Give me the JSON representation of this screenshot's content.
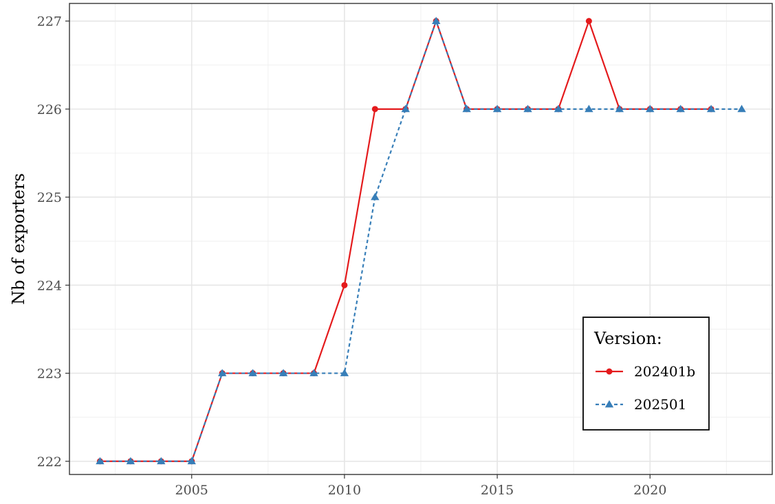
{
  "chart_data": {
    "type": "line",
    "title": "",
    "xlabel": "",
    "ylabel": "Nb of exporters",
    "xlim": [
      2001.0,
      2024.0
    ],
    "ylim": [
      221.85,
      227.2
    ],
    "xticks": [
      2005,
      2010,
      2015,
      2020
    ],
    "yticks": [
      222,
      223,
      224,
      225,
      226,
      227
    ],
    "grid": true,
    "legend": {
      "title": "Version:",
      "position": "bottom-right, inside plot"
    },
    "series": [
      {
        "name": "202401b",
        "color": "#e41a1c",
        "line": "solid",
        "marker": "circle",
        "x": [
          2002,
          2003,
          2004,
          2005,
          2006,
          2007,
          2008,
          2009,
          2010,
          2011,
          2012,
          2013,
          2014,
          2015,
          2016,
          2017,
          2018,
          2019,
          2020,
          2021,
          2022
        ],
        "values": [
          222,
          222,
          222,
          222,
          223,
          223,
          223,
          223,
          224,
          226,
          226,
          227,
          226,
          226,
          226,
          226,
          227,
          226,
          226,
          226,
          226
        ]
      },
      {
        "name": "202501",
        "color": "#377eb8",
        "line": "dashed",
        "marker": "triangle",
        "x": [
          2002,
          2003,
          2004,
          2005,
          2006,
          2007,
          2008,
          2009,
          2010,
          2011,
          2012,
          2013,
          2014,
          2015,
          2016,
          2017,
          2018,
          2019,
          2020,
          2021,
          2022,
          2023
        ],
        "values": [
          222,
          222,
          222,
          222,
          223,
          223,
          223,
          223,
          223,
          225,
          226,
          227,
          226,
          226,
          226,
          226,
          226,
          226,
          226,
          226,
          226,
          226
        ]
      }
    ]
  }
}
